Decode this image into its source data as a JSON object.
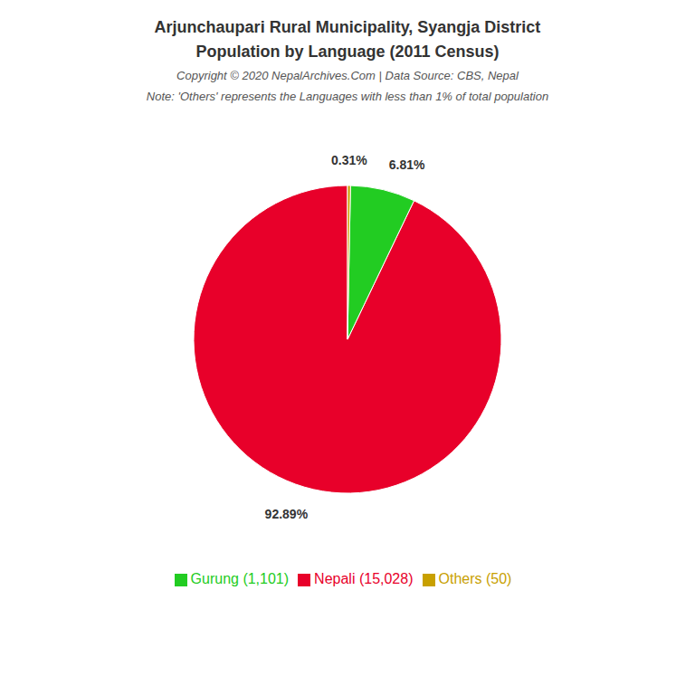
{
  "chart_data": {
    "type": "pie",
    "title": "Arjunchaupari Rural Municipality, Syangja District",
    "subtitle": "Population by Language (2011 Census)",
    "annotations": [
      "Copyright © 2020 NepalArchives.Com | Data Source: CBS, Nepal",
      "Note: 'Others' represents the Languages with less than 1% of total population"
    ],
    "categories": [
      "Nepali (15,028)",
      "Gurung (1,101)",
      "Others (50)"
    ],
    "values": [
      92.89,
      6.81,
      0.31
    ],
    "value_labels": [
      "92.89%",
      "6.81%",
      "0.31%"
    ],
    "colors": [
      "#e8002a",
      "#22cc22",
      "#c8a000"
    ],
    "data_labels": true,
    "legend": "bottom"
  }
}
